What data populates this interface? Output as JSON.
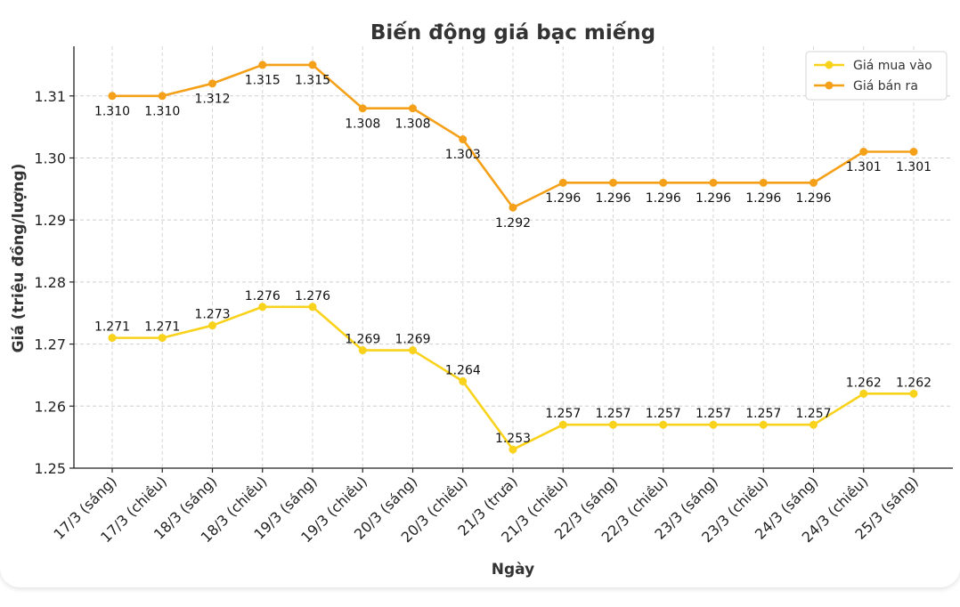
{
  "chart_data": {
    "type": "line",
    "title": "Biến động giá bạc miếng",
    "xlabel": "Ngày",
    "ylabel": "Giá (triệu đồng/lượng)",
    "categories": [
      "17/3 (sáng)",
      "17/3 (chiều)",
      "18/3 (sáng)",
      "18/3 (chiều)",
      "19/3 (sáng)",
      "19/3 (chiều)",
      "20/3 (sáng)",
      "20/3 (chiều)",
      "21/3 (trưa)",
      "21/3 (chiều)",
      "22/3 (sáng)",
      "22/3 (chiều)",
      "23/3 (sáng)",
      "23/3 (chiều)",
      "24/3 (sáng)",
      "24/3 (chiều)",
      "25/3 (sáng)"
    ],
    "ylim": [
      1.25,
      1.318
    ],
    "yticks": [
      1.25,
      1.26,
      1.27,
      1.28,
      1.29,
      1.3,
      1.31
    ],
    "ytick_labels": [
      "1.25",
      "1.26",
      "1.27",
      "1.28",
      "1.29",
      "1.30",
      "1.31"
    ],
    "grid": true,
    "legend_position": "top-right",
    "series": [
      {
        "name": "Giá mua vào",
        "color": "#f9d21c",
        "values": [
          1.271,
          1.271,
          1.273,
          1.276,
          1.276,
          1.269,
          1.269,
          1.264,
          1.253,
          1.257,
          1.257,
          1.257,
          1.257,
          1.257,
          1.257,
          1.262,
          1.262
        ],
        "labels": [
          "1.271",
          "1.271",
          "1.273",
          "1.276",
          "1.276",
          "1.269",
          "1.269",
          "1.264",
          "1.253",
          "1.257",
          "1.257",
          "1.257",
          "1.257",
          "1.257",
          "1.257",
          "1.262",
          "1.262"
        ],
        "label_position": "above"
      },
      {
        "name": "Giá bán ra",
        "color": "#f5a019",
        "values": [
          1.31,
          1.31,
          1.312,
          1.315,
          1.315,
          1.308,
          1.308,
          1.303,
          1.292,
          1.296,
          1.296,
          1.296,
          1.296,
          1.296,
          1.296,
          1.301,
          1.301
        ],
        "labels": [
          "1.310",
          "1.310",
          "1.312",
          "1.315",
          "1.315",
          "1.308",
          "1.308",
          "1.303",
          "1.292",
          "1.296",
          "1.296",
          "1.296",
          "1.296",
          "1.296",
          "1.296",
          "1.301",
          "1.301"
        ],
        "label_position": "below"
      }
    ]
  }
}
